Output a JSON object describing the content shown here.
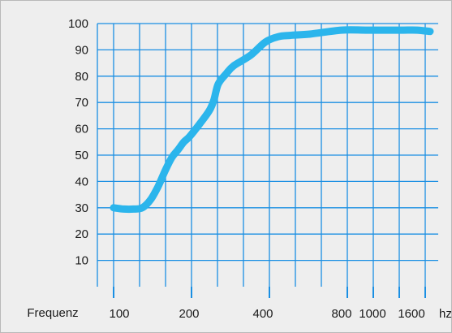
{
  "colors": {
    "background": "#eeeeee",
    "frame": "#b9b9b9",
    "grid": "#1a8fe3",
    "curve": "#2bb5ec",
    "text": "#1a1a1a"
  },
  "chart_data": {
    "type": "line",
    "title": "",
    "xlabel": "Frequenz",
    "xunit": "hz",
    "ylabel": "",
    "ylim": [
      0,
      100
    ],
    "grid": true,
    "xticks": [
      "100",
      "200",
      "400",
      "800",
      "1000",
      "1600"
    ],
    "yticks": [
      "10",
      "20",
      "30",
      "40",
      "50",
      "60",
      "70",
      "80",
      "90",
      "100"
    ],
    "series": [
      {
        "x": [
          100,
          110,
          120,
          130,
          140,
          150,
          160,
          170,
          180,
          190,
          200,
          220,
          240,
          250,
          260,
          280,
          300,
          350,
          400,
          450,
          500,
          600,
          800,
          1000,
          1200,
          1400,
          1600,
          1800
        ],
        "values": [
          30,
          29.5,
          29.5,
          30,
          33,
          38,
          44,
          49,
          52,
          55,
          57,
          62,
          67,
          71,
          77,
          81,
          84,
          88,
          93,
          95,
          95.5,
          96,
          97.5,
          97.5,
          97.5,
          97.5,
          97.5,
          97
        ]
      }
    ]
  }
}
